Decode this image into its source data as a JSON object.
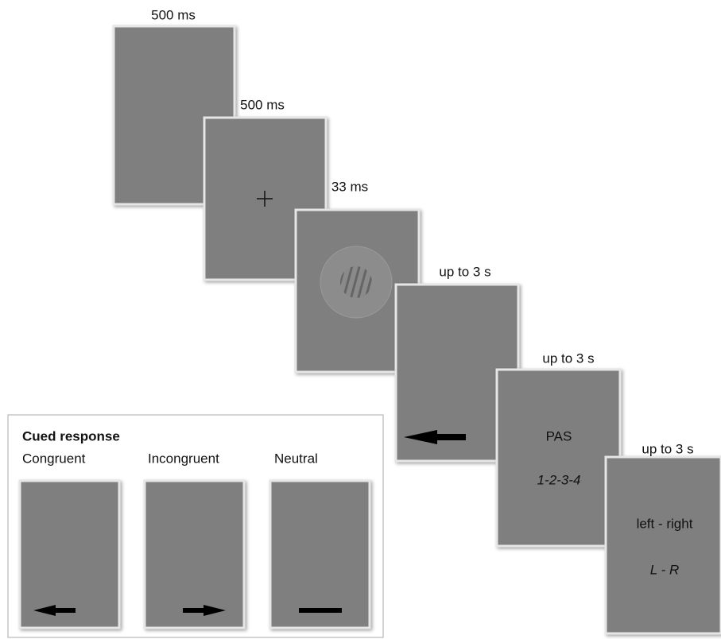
{
  "screens": [
    {
      "duration": "500 ms"
    },
    {
      "duration": "500 ms"
    },
    {
      "duration": "33 ms"
    },
    {
      "duration": "up to 3 s"
    },
    {
      "duration": "up to 3 s",
      "lines": [
        "PAS",
        "1-2-3-4"
      ]
    },
    {
      "duration": "up to 3 s",
      "lines": [
        "left - right",
        "L - R"
      ]
    }
  ],
  "inset": {
    "title": "Cued response",
    "conditions": [
      "Congruent",
      "Incongruent",
      "Neutral"
    ]
  }
}
